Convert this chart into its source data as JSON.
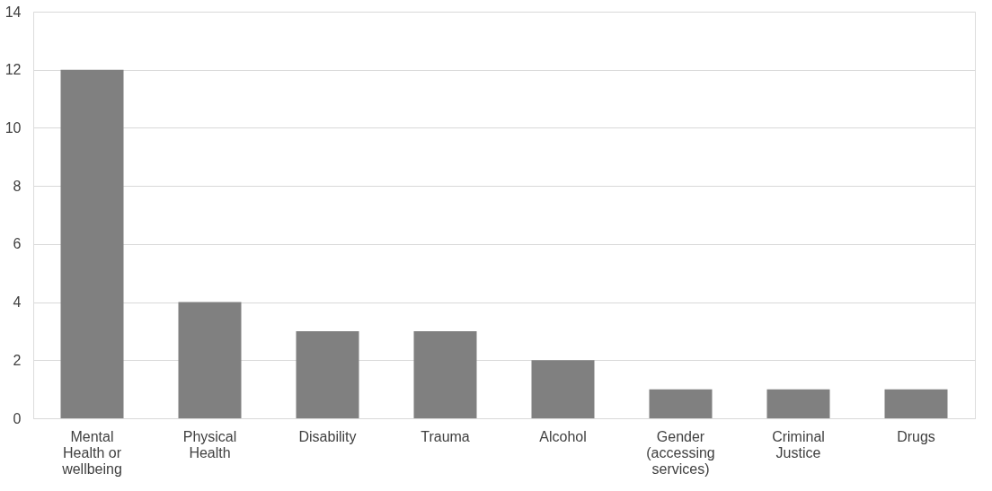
{
  "chart_data": {
    "type": "bar",
    "categories": [
      "Mental Health or wellbeing",
      "Physical Health",
      "Disability",
      "Trauma",
      "Alcohol",
      "Gender (accessing services)",
      "Criminal Justice",
      "Drugs"
    ],
    "values": [
      12,
      4,
      3,
      3,
      2,
      1,
      1,
      1
    ],
    "color": "#808080",
    "ylim": [
      0,
      14
    ],
    "yticks": [
      0,
      2,
      4,
      6,
      8,
      10,
      12,
      14
    ],
    "grid": "y"
  }
}
